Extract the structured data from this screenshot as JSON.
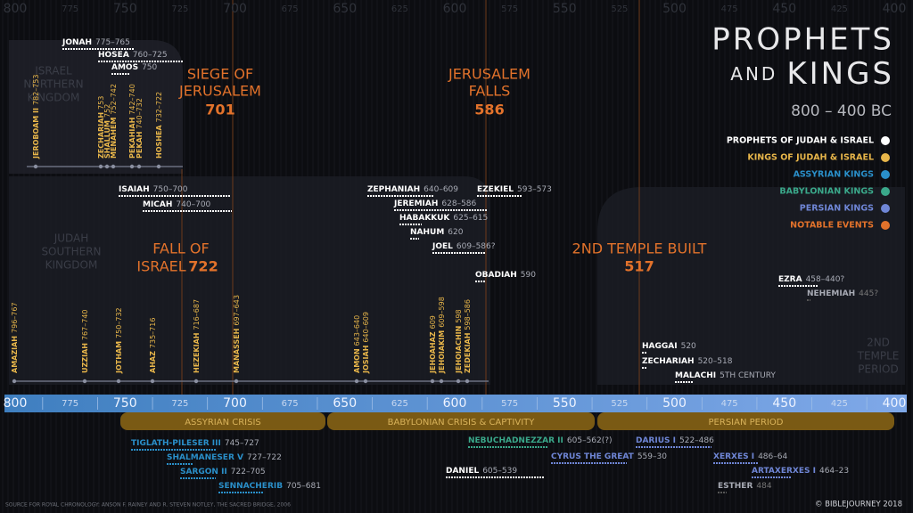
{
  "header": {
    "title": "PROPHETS",
    "subtitle_small": "AND",
    "subtitle": "KINGS",
    "range": "800 – 400 BC"
  },
  "legend": [
    {
      "label": "PROPHETS OF JUDAH & ISRAEL",
      "color": "#ffffff"
    },
    {
      "label": "KINGS OF JUDAH & ISRAEL",
      "color": "#e8b64a"
    },
    {
      "label": "ASSYRIAN KINGS",
      "color": "#2a8fc9"
    },
    {
      "label": "BABYLONIAN KINGS",
      "color": "#3aa88a"
    },
    {
      "label": "PERSIAN KINGS",
      "color": "#6f86d6"
    },
    {
      "label": "NOTABLE EVENTS",
      "color": "#e2722b"
    }
  ],
  "events": [
    {
      "lines": [
        "SIEGE OF",
        "JERUSALEM"
      ],
      "year": "701"
    },
    {
      "lines": [
        "JERUSALEM",
        "FALLS"
      ],
      "year": "586"
    },
    {
      "lines": [
        "FALL OF",
        "ISRAEL"
      ],
      "year": "722"
    },
    {
      "lines": [
        "2ND TEMPLE BUILT"
      ],
      "year": "517"
    }
  ],
  "regions": [
    {
      "lines": [
        "ISRAEL",
        "NORTHERN",
        "KINGDOM"
      ]
    },
    {
      "lines": [
        "JUDAH",
        "SOUTHERN",
        "KINGDOM"
      ]
    },
    {
      "lines": [
        "2ND",
        "TEMPLE",
        "PERIOD"
      ]
    }
  ],
  "prophets": [
    {
      "name": "JONAH",
      "dates": "775–765"
    },
    {
      "name": "HOSEA",
      "dates": "760–725"
    },
    {
      "name": "AMOS",
      "dates": "750"
    },
    {
      "name": "ISAIAH",
      "dates": "750–700"
    },
    {
      "name": "MICAH",
      "dates": "740–700"
    },
    {
      "name": "ZEPHANIAH",
      "dates": "640–609"
    },
    {
      "name": "JEREMIAH",
      "dates": "628–586"
    },
    {
      "name": "HABAKKUK",
      "dates": "625–615"
    },
    {
      "name": "NAHUM",
      "dates": "620"
    },
    {
      "name": "JOEL",
      "dates": "609–586?"
    },
    {
      "name": "EZEKIEL",
      "dates": "593–573"
    },
    {
      "name": "OBADIAH",
      "dates": "590"
    },
    {
      "name": "EZRA",
      "dates": "458–440?"
    },
    {
      "name": "NEHEMIAH",
      "dates": "445?"
    },
    {
      "name": "HAGGAI",
      "dates": "520"
    },
    {
      "name": "ZECHARIAH",
      "dates": "520–518"
    },
    {
      "name": "MALACHI",
      "dates": "5TH CENTURY"
    }
  ],
  "israel_kings": [
    {
      "name": "JEROBOAM II",
      "dates": "782–753"
    },
    {
      "name": "ZECHARIAH",
      "dates": "753"
    },
    {
      "name": "SHALLUM",
      "dates": "752"
    },
    {
      "name": "MENAHEM",
      "dates": "752–742"
    },
    {
      "name": "PEKAHIAH",
      "dates": "742–740"
    },
    {
      "name": "PEKAH",
      "dates": "740–732"
    },
    {
      "name": "HOSHEA",
      "dates": "732–722"
    }
  ],
  "judah_kings": [
    {
      "name": "AMAZIAH",
      "dates": "796–767"
    },
    {
      "name": "UZZIAH",
      "dates": "767–740"
    },
    {
      "name": "JOTHAM",
      "dates": "750–732"
    },
    {
      "name": "AHAZ",
      "dates": "735–716"
    },
    {
      "name": "HEZEKIAH",
      "dates": "716–687"
    },
    {
      "name": "MANASSEH",
      "dates": "697–643"
    },
    {
      "name": "AMON",
      "dates": "643–640"
    },
    {
      "name": "JOSIAH",
      "dates": "640–609"
    },
    {
      "name": "JEHOAHAZ",
      "dates": "609"
    },
    {
      "name": "JEHOIAKIM",
      "dates": "609–598"
    },
    {
      "name": "JEHOIACHIN",
      "dates": "598"
    },
    {
      "name": "ZEDEKIAH",
      "dates": "598–586"
    }
  ],
  "axis_ticks": [
    800,
    775,
    750,
    725,
    700,
    675,
    650,
    625,
    600,
    575,
    550,
    525,
    500,
    475,
    450,
    425,
    400
  ],
  "periods": [
    "ASSYRIAN CRISIS",
    "BABYLONIAN CRISIS & CAPTIVITY",
    "PERSIAN PERIOD"
  ],
  "foreign_kings": [
    {
      "name": "TIGLATH-PILESER III",
      "dates": "745–727"
    },
    {
      "name": "SHALMANESER V",
      "dates": "727–722"
    },
    {
      "name": "SARGON II",
      "dates": "722–705"
    },
    {
      "name": "SENNACHERIB",
      "dates": "705–681"
    },
    {
      "name": "NEBUCHADNEZZAR II",
      "dates": "605–562(?)"
    },
    {
      "name": "CYRUS THE GREAT",
      "dates": "559–30"
    },
    {
      "name": "DARIUS I",
      "dates": "522–486"
    },
    {
      "name": "XERXES I",
      "dates": "486–64"
    },
    {
      "name": "ARTAXERXES I",
      "dates": "464–23"
    },
    {
      "name": "ESTHER",
      "dates": "484"
    },
    {
      "name": "DANIEL",
      "dates": "605–539"
    }
  ],
  "footer": {
    "source": "SOURCE FOR ROYAL CHRONOLOGY: ANSON F. RAINEY AND R. STEVEN NOTLEY, THE SACRED BRIDGE, 2006",
    "copyright": "© BIBLEJOURNEY 2018"
  }
}
